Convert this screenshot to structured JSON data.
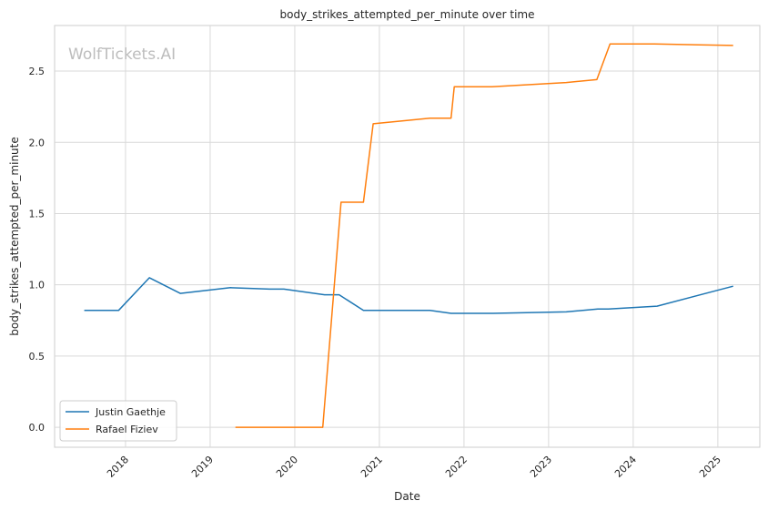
{
  "watermark": "WolfTickets.AI",
  "chart_data": {
    "type": "line",
    "title": "body_strikes_attempted_per_minute over time",
    "xlabel": "Date",
    "ylabel": "body_strikes_attempted_per_minute",
    "xlim": [
      "2017-03-01",
      "2025-07-01"
    ],
    "ylim": [
      -0.14,
      2.82
    ],
    "x_ticks": [
      "2018",
      "2019",
      "2020",
      "2021",
      "2022",
      "2023",
      "2024",
      "2025"
    ],
    "y_ticks": [
      "0.0",
      "0.5",
      "1.0",
      "1.5",
      "2.0",
      "2.5"
    ],
    "grid": true,
    "legend_position": "lower-left",
    "series": [
      {
        "name": "Justin Gaethje",
        "color": "#1f77b4",
        "x": [
          "2017-07-07",
          "2017-12-02",
          "2018-04-14",
          "2018-08-25",
          "2019-03-30",
          "2019-09-14",
          "2019-11-15",
          "2020-05-09",
          "2020-07-11",
          "2020-10-24",
          "2021-08-07",
          "2021-11-06",
          "2022-05-07",
          "2023-03-18",
          "2023-08-01",
          "2023-09-16",
          "2024-04-13",
          "2025-03-08"
        ],
        "y": [
          0.82,
          0.82,
          1.05,
          0.94,
          0.98,
          0.97,
          0.97,
          0.93,
          0.93,
          0.82,
          0.82,
          0.8,
          0.8,
          0.81,
          0.83,
          0.83,
          0.85,
          0.99
        ]
      },
      {
        "name": "Rafael Fiziev",
        "color": "#ff7f0e",
        "x": [
          "2019-04-20",
          "2019-11-01",
          "2020-05-01",
          "2020-07-19",
          "2020-10-24",
          "2020-12-05",
          "2021-08-07",
          "2021-11-06",
          "2021-11-20",
          "2022-05-01",
          "2023-03-18",
          "2023-07-28",
          "2023-09-23",
          "2024-04-01",
          "2025-03-08"
        ],
        "y": [
          0.0,
          0.0,
          0.0,
          1.58,
          1.58,
          2.13,
          2.17,
          2.17,
          2.39,
          2.39,
          2.42,
          2.44,
          2.69,
          2.69,
          2.68
        ]
      }
    ]
  }
}
